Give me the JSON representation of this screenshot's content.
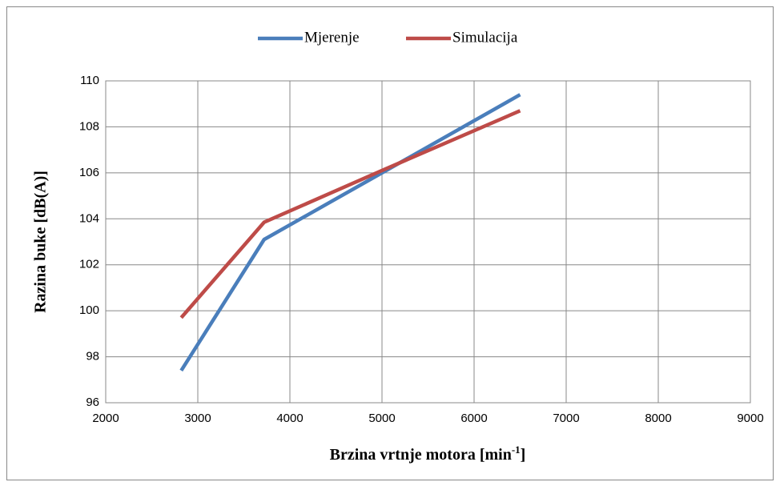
{
  "chart_data": {
    "type": "line",
    "y_label": "Razina buke  [dB(A)]",
    "x_label": {
      "text": "Brzina vrtnje motora [min",
      "superscript": "-1",
      "suffix": "]"
    },
    "series": [
      {
        "name": "Mjerenje",
        "color": "#4a7ebb",
        "x": [
          2820,
          3720,
          5000,
          6500
        ],
        "values": [
          97.4,
          103.1,
          106.0,
          109.4
        ]
      },
      {
        "name": "Simulacija",
        "color": "#be4b48",
        "x": [
          2820,
          3720,
          5000,
          6500
        ],
        "values": [
          99.7,
          103.85,
          106.1,
          108.7
        ]
      }
    ],
    "xlim": [
      2000,
      9000
    ],
    "xticks": [
      2000,
      3000,
      4000,
      5000,
      6000,
      7000,
      8000,
      9000
    ],
    "ylim": [
      96,
      110
    ],
    "yticks": [
      96,
      98,
      100,
      102,
      104,
      106,
      108,
      110
    ],
    "grid": true,
    "legend": "top"
  }
}
